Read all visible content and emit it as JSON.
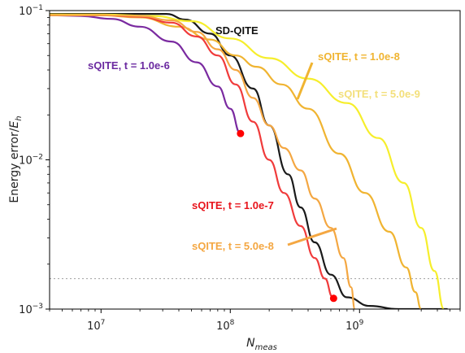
{
  "chart_data": {
    "type": "line",
    "x_scale": "log",
    "y_scale": "log",
    "xlabel": "N_meas",
    "ylabel": "Energy error/E_h",
    "xlim": [
      4000000,
      6000000000
    ],
    "ylim": [
      0.001,
      0.1
    ],
    "x_ticks": [
      {
        "value": 10000000,
        "base": "10",
        "exp": "7"
      },
      {
        "value": 100000000,
        "base": "10",
        "exp": "8"
      },
      {
        "value": 1000000000,
        "base": "10",
        "exp": "9"
      }
    ],
    "y_ticks": [
      {
        "value": 0.001,
        "base": "10",
        "exp": "−3"
      },
      {
        "value": 0.01,
        "base": "10",
        "exp": "−2"
      },
      {
        "value": 0.1,
        "base": "10",
        "exp": "−1"
      }
    ],
    "reference_line": {
      "y": 0.0016,
      "style": "dotted",
      "color": "#aaaaaa"
    },
    "series": [
      {
        "label": "SD-QITE",
        "color": "#1a1a1a",
        "points": [
          [
            4000000,
            0.095
          ],
          [
            8000000,
            0.095
          ],
          [
            15000000,
            0.095
          ],
          [
            30000000,
            0.095
          ],
          [
            32000000,
            0.095
          ],
          [
            45000000,
            0.087
          ],
          [
            70000000,
            0.07
          ],
          [
            100000000,
            0.05
          ],
          [
            150000000,
            0.03
          ],
          [
            200000000,
            0.017
          ],
          [
            280000000,
            0.008
          ],
          [
            350000000,
            0.0048
          ],
          [
            450000000,
            0.0028
          ],
          [
            600000000,
            0.0017
          ],
          [
            800000000,
            0.0012
          ],
          [
            1200000000,
            0.00105
          ],
          [
            2000000000,
            0.001
          ],
          [
            4800000000,
            0.001
          ]
        ]
      },
      {
        "label": "sQITE, t = 1.0e-8",
        "color": "#f0b431",
        "points": [
          [
            4000000,
            0.094
          ],
          [
            10000000,
            0.093
          ],
          [
            20000000,
            0.09
          ],
          [
            40000000,
            0.078
          ],
          [
            70000000,
            0.064
          ],
          [
            110000000,
            0.05
          ],
          [
            160000000,
            0.042
          ],
          [
            250000000,
            0.032
          ],
          [
            400000000,
            0.022
          ],
          [
            700000000,
            0.011
          ],
          [
            1100000000,
            0.006
          ],
          [
            1700000000,
            0.0033
          ],
          [
            2300000000,
            0.0019
          ],
          [
            2700000000,
            0.0013
          ],
          [
            3000000000,
            0.001
          ]
        ]
      },
      {
        "label": "sQITE, t = 5.0e-9",
        "color": "#f6ee2c",
        "points": [
          [
            4000000,
            0.094
          ],
          [
            10000000,
            0.094
          ],
          [
            25000000,
            0.092
          ],
          [
            50000000,
            0.085
          ],
          [
            100000000,
            0.065
          ],
          [
            200000000,
            0.048
          ],
          [
            400000000,
            0.035
          ],
          [
            800000000,
            0.024
          ],
          [
            1400000000,
            0.014
          ],
          [
            2200000000,
            0.007
          ],
          [
            3000000000,
            0.0035
          ],
          [
            3800000000,
            0.0018
          ],
          [
            4500000000,
            0.001
          ]
        ]
      },
      {
        "label": "sQITE, t = 1.0e-6",
        "color": "#7a2aa0",
        "points": [
          [
            4000000,
            0.093
          ],
          [
            7000000,
            0.092
          ],
          [
            12000000,
            0.088
          ],
          [
            20000000,
            0.078
          ],
          [
            35000000,
            0.062
          ],
          [
            55000000,
            0.045
          ],
          [
            80000000,
            0.031
          ],
          [
            100000000,
            0.022
          ],
          [
            120000000,
            0.015
          ]
        ],
        "end_marker": {
          "x": 120000000,
          "y": 0.015,
          "color": "#ff0000"
        }
      },
      {
        "label": "sQITE, t = 1.0e-7",
        "color": "#f03b3b",
        "points": [
          [
            4000000,
            0.093
          ],
          [
            10000000,
            0.093
          ],
          [
            20000000,
            0.091
          ],
          [
            35000000,
            0.083
          ],
          [
            55000000,
            0.067
          ],
          [
            80000000,
            0.05
          ],
          [
            110000000,
            0.032
          ],
          [
            150000000,
            0.018
          ],
          [
            200000000,
            0.01
          ],
          [
            260000000,
            0.006
          ],
          [
            350000000,
            0.0036
          ],
          [
            450000000,
            0.0022
          ],
          [
            540000000,
            0.0016
          ],
          [
            620000000,
            0.0012
          ]
        ],
        "end_marker": {
          "x": 630000000,
          "y": 0.00118,
          "color": "#ff0000"
        }
      },
      {
        "label": "sQITE, t = 5.0e-8",
        "color": "#f4a742",
        "points": [
          [
            4000000,
            0.093
          ],
          [
            10000000,
            0.093
          ],
          [
            20000000,
            0.092
          ],
          [
            35000000,
            0.086
          ],
          [
            55000000,
            0.072
          ],
          [
            80000000,
            0.055
          ],
          [
            110000000,
            0.04
          ],
          [
            150000000,
            0.026
          ],
          [
            200000000,
            0.017
          ],
          [
            260000000,
            0.012
          ],
          [
            350000000,
            0.0085
          ],
          [
            450000000,
            0.0055
          ],
          [
            600000000,
            0.0035
          ],
          [
            750000000,
            0.0022
          ],
          [
            860000000,
            0.0014
          ],
          [
            920000000,
            0.001
          ]
        ]
      }
    ],
    "annotations": [
      {
        "text": "SD-QITE",
        "color": "#111111"
      },
      {
        "text": "sQITE, t = 1.0e-6",
        "color": "#6b2aa0"
      },
      {
        "text": "sQITE, t = 1.0e-8",
        "color": "#f0b431"
      },
      {
        "text": "sQITE, t = 5.0e-9",
        "color": "#f3df7a"
      },
      {
        "text": "sQITE, t = 1.0e-7",
        "color": "#e8141c"
      },
      {
        "text": "sQITE, t = 5.0e-8",
        "color": "#f4a742"
      }
    ]
  }
}
